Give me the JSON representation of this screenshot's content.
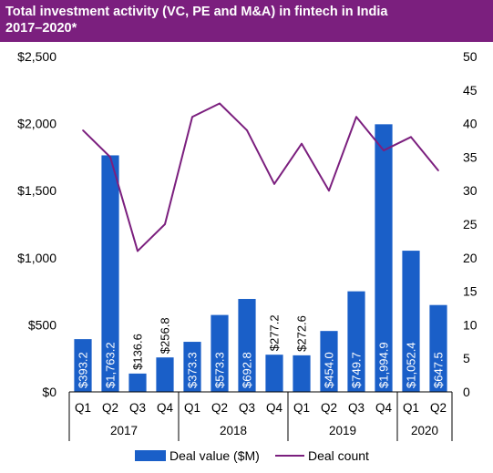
{
  "chart_data": {
    "type": "bar",
    "title": "Total investment activity (VC, PE and M&A) in fintech in India",
    "subtitle": "2017–2020*",
    "categories": [
      "Q1",
      "Q2",
      "Q3",
      "Q4",
      "Q1",
      "Q2",
      "Q3",
      "Q4",
      "Q1",
      "Q2",
      "Q3",
      "Q4",
      "Q1",
      "Q2"
    ],
    "category_groups": [
      {
        "label": "2017",
        "count": 4
      },
      {
        "label": "2018",
        "count": 4
      },
      {
        "label": "2019",
        "count": 4
      },
      {
        "label": "2020",
        "count": 2
      }
    ],
    "series": [
      {
        "name": "Deal value ($M)",
        "type": "bar",
        "axis": "left",
        "values": [
          393.2,
          1763.2,
          136.6,
          256.8,
          373.3,
          573.3,
          692.8,
          277.2,
          272.6,
          454.0,
          749.7,
          1994.9,
          1052.4,
          647.5
        ],
        "labels": [
          "$393.2",
          "$1,763.2",
          "$136.6",
          "$256.8",
          "$373.3",
          "$573.3",
          "$692.8",
          "$277.2",
          "$272.6",
          "$454.0",
          "$749.7",
          "$1,994.9",
          "$1,052.4",
          "$647.5"
        ],
        "color": "#1a5fc8"
      },
      {
        "name": "Deal count",
        "type": "line",
        "axis": "right",
        "values": [
          39,
          35,
          21,
          25,
          41,
          43,
          39,
          31,
          37,
          30,
          41,
          36,
          38,
          33
        ],
        "color": "#7b1f7e"
      }
    ],
    "y_left": {
      "ylim": [
        0,
        2500
      ],
      "ticks": [
        "$0",
        "$500",
        "$1,000",
        "$1,500",
        "$2,000",
        "$2,500"
      ],
      "tick_values": [
        0,
        500,
        1000,
        1500,
        2000,
        2500
      ]
    },
    "y_right": {
      "ylim": [
        0,
        50
      ],
      "ticks": [
        "0",
        "5",
        "10",
        "15",
        "20",
        "25",
        "30",
        "35",
        "40",
        "45",
        "50"
      ],
      "tick_values": [
        0,
        5,
        10,
        15,
        20,
        25,
        30,
        35,
        40,
        45,
        50
      ]
    },
    "grid": false,
    "legend_placement": "bottom-center"
  }
}
